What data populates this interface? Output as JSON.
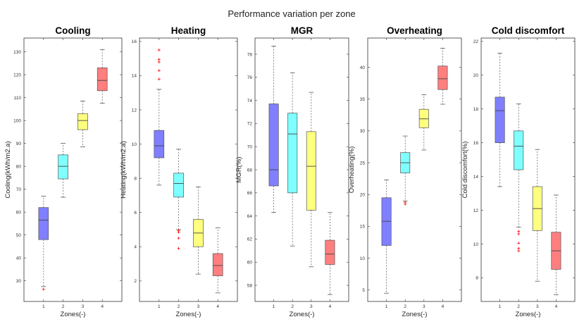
{
  "figure": {
    "title": "Performance variation per zone"
  },
  "colors": {
    "zone_fills": [
      "#7f7fff",
      "#7fffff",
      "#ffff7f",
      "#ff7f7f"
    ],
    "median": "#444444",
    "whisker": "#555555",
    "outlier": "#ff0000",
    "axes": "#333333"
  },
  "chart_data": [
    {
      "type": "box",
      "title": "Cooling",
      "xlabel": "Zones(-)",
      "ylabel": "Cooling(kWh/m2.a)",
      "ylim": [
        21,
        136
      ],
      "yticks": [
        30,
        40,
        50,
        60,
        70,
        80,
        90,
        100,
        110,
        120,
        130
      ],
      "categories": [
        "1",
        "2",
        "3",
        "4"
      ],
      "boxes": [
        {
          "whislo": 27.5,
          "q1": 48,
          "med": 56.5,
          "q3": 62,
          "whishi": 67,
          "fliers": [
            26.3
          ]
        },
        {
          "whislo": 66.5,
          "q1": 74.5,
          "med": 80,
          "q3": 85,
          "whishi": 90,
          "fliers": []
        },
        {
          "whislo": 88.5,
          "q1": 96,
          "med": 100,
          "q3": 103,
          "whishi": 108.5,
          "fliers": []
        },
        {
          "whislo": 107.5,
          "q1": 113,
          "med": 117.5,
          "q3": 123,
          "whishi": 131,
          "fliers": []
        }
      ]
    },
    {
      "type": "box",
      "title": "Heating",
      "xlabel": "Zones(-)",
      "ylabel": "Heating(kWh/m2.a)",
      "ylim": [
        0.8,
        16.2
      ],
      "yticks": [
        2,
        4,
        6,
        8,
        10,
        12,
        14,
        16
      ],
      "categories": [
        "1",
        "2",
        "3",
        "4"
      ],
      "boxes": [
        {
          "whislo": 7.6,
          "q1": 9.2,
          "med": 9.9,
          "q3": 10.8,
          "whishi": 13.2,
          "fliers": [
            13.8,
            14.3,
            14.8,
            14.95,
            15.5
          ]
        },
        {
          "whislo": 5.0,
          "q1": 6.9,
          "med": 7.7,
          "q3": 8.3,
          "whishi": 9.7,
          "fliers": [
            3.9,
            4.5,
            4.85,
            4.95
          ]
        },
        {
          "whislo": 2.4,
          "q1": 4.0,
          "med": 4.8,
          "q3": 5.6,
          "whishi": 7.5,
          "fliers": []
        },
        {
          "whislo": 1.3,
          "q1": 2.3,
          "med": 2.9,
          "q3": 3.6,
          "whishi": 5.1,
          "fliers": []
        }
      ]
    },
    {
      "type": "box",
      "title": "MGR",
      "xlabel": "Zones(-)",
      "ylabel": "MGR(%)",
      "ylim": [
        56.6,
        79.4
      ],
      "yticks": [
        58,
        60,
        62,
        64,
        66,
        68,
        70,
        72,
        74,
        76,
        78
      ],
      "categories": [
        "1",
        "2",
        "3",
        "4"
      ],
      "boxes": [
        {
          "whislo": 64.3,
          "q1": 66.6,
          "med": 68,
          "q3": 73.7,
          "whishi": 78.7,
          "fliers": []
        },
        {
          "whislo": 61.4,
          "q1": 66,
          "med": 71.1,
          "q3": 72.9,
          "whishi": 76.4,
          "fliers": []
        },
        {
          "whislo": 59.6,
          "q1": 64.5,
          "med": 68.3,
          "q3": 71.3,
          "whishi": 74.7,
          "fliers": []
        },
        {
          "whislo": 57.2,
          "q1": 59.8,
          "med": 60.7,
          "q3": 61.9,
          "whishi": 64.3,
          "fliers": []
        }
      ]
    },
    {
      "type": "box",
      "title": "Overheating",
      "xlabel": "Zones(-)",
      "ylabel": "Overheating(%)",
      "ylim": [
        3.2,
        44.6
      ],
      "yticks": [
        5,
        10,
        15,
        20,
        25,
        30,
        35,
        40
      ],
      "categories": [
        "1",
        "2",
        "3",
        "4"
      ],
      "boxes": [
        {
          "whislo": 4.5,
          "q1": 12,
          "med": 15.8,
          "q3": 19.5,
          "whishi": 22.3,
          "fliers": []
        },
        {
          "whislo": 19,
          "q1": 23.4,
          "med": 25,
          "q3": 26.6,
          "whishi": 29.2,
          "fliers": [
            18.5,
            18.8
          ]
        },
        {
          "whislo": 27,
          "q1": 30.5,
          "med": 31.9,
          "q3": 33.4,
          "whishi": 35.7,
          "fliers": []
        },
        {
          "whislo": 34.2,
          "q1": 36.5,
          "med": 38.2,
          "q3": 40.2,
          "whishi": 43,
          "fliers": []
        }
      ]
    },
    {
      "type": "box",
      "title": "Cold discomfort",
      "xlabel": "Zones(-)",
      "ylabel": "Cold discomfort(%)",
      "ylim": [
        6.6,
        22.2
      ],
      "yticks": [
        8,
        10,
        12,
        14,
        16,
        18,
        20,
        22
      ],
      "categories": [
        "1",
        "2",
        "3",
        "4"
      ],
      "boxes": [
        {
          "whislo": 13.4,
          "q1": 16,
          "med": 17.9,
          "q3": 18.7,
          "whishi": 21.3,
          "fliers": []
        },
        {
          "whislo": 11.0,
          "q1": 14.4,
          "med": 15.8,
          "q3": 16.7,
          "whishi": 18.3,
          "fliers": [
            9.6,
            9.75,
            10.05,
            10.6,
            10.75
          ]
        },
        {
          "whislo": 7.8,
          "q1": 10.8,
          "med": 12.1,
          "q3": 13.4,
          "whishi": 15.6,
          "fliers": []
        },
        {
          "whislo": 7.0,
          "q1": 8.5,
          "med": 9.6,
          "q3": 10.7,
          "whishi": 12.9,
          "fliers": []
        }
      ]
    }
  ]
}
